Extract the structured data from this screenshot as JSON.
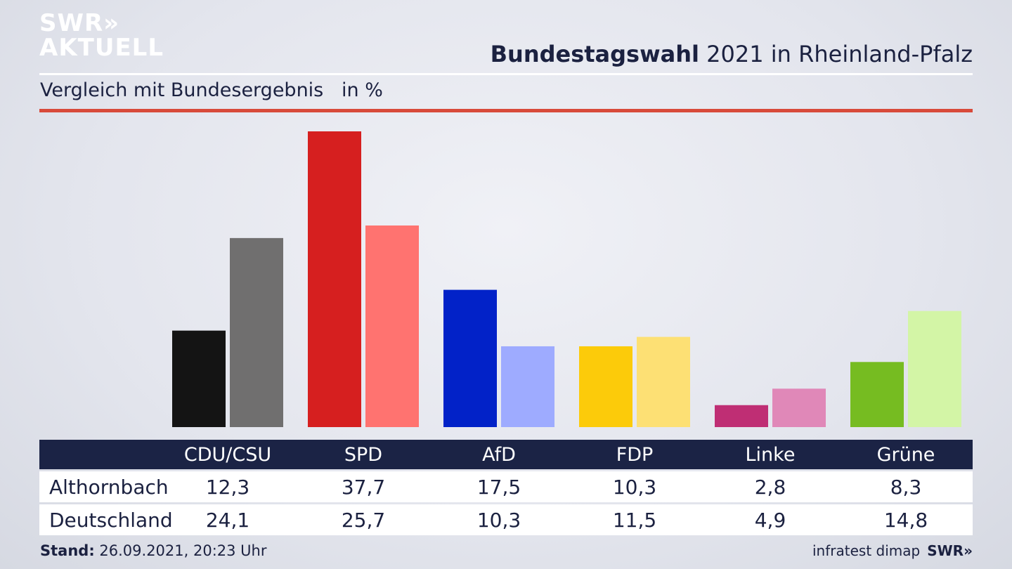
{
  "header": {
    "logo_line1": "SWR»",
    "logo_line2": "AKTUELL",
    "title_bold": "Bundestagswahl",
    "title_rest": " 2021 in Rheinland-Pfalz",
    "subtitle": "Vergleich mit Bundesergebnis   in %"
  },
  "chart_data": {
    "type": "bar",
    "title": "Bundestagswahl 2021 in Rheinland-Pfalz",
    "subtitle": "Vergleich mit Bundesergebnis   in %",
    "categories": [
      "CDU/CSU",
      "SPD",
      "AfD",
      "FDP",
      "Linke",
      "Grüne"
    ],
    "series": [
      {
        "name": "Althornbach",
        "values": [
          12.3,
          37.7,
          17.5,
          10.3,
          2.8,
          8.3
        ],
        "labels": [
          "12,3",
          "37,7",
          "17,5",
          "10,3",
          "2,8",
          "8,3"
        ],
        "colors": [
          "#141414",
          "#d61f1f",
          "#0222c8",
          "#fccb0a",
          "#bf2e74",
          "#76bc21"
        ]
      },
      {
        "name": "Deutschland",
        "values": [
          24.1,
          25.7,
          10.3,
          11.5,
          4.9,
          14.8
        ],
        "labels": [
          "24,1",
          "25,7",
          "10,3",
          "11,5",
          "4,9",
          "14,8"
        ],
        "colors": [
          "#706f6f",
          "#ff7370",
          "#9eabff",
          "#fde074",
          "#e088b8",
          "#d3f5a6"
        ]
      }
    ],
    "ylim": [
      0,
      37.7
    ],
    "grid": false,
    "legend": "table-below"
  },
  "footer": {
    "stand_label": "Stand:",
    "stand_value": " 26.09.2021, 20:23 Uhr",
    "source": "infratest dimap",
    "brand": "SWR»"
  }
}
